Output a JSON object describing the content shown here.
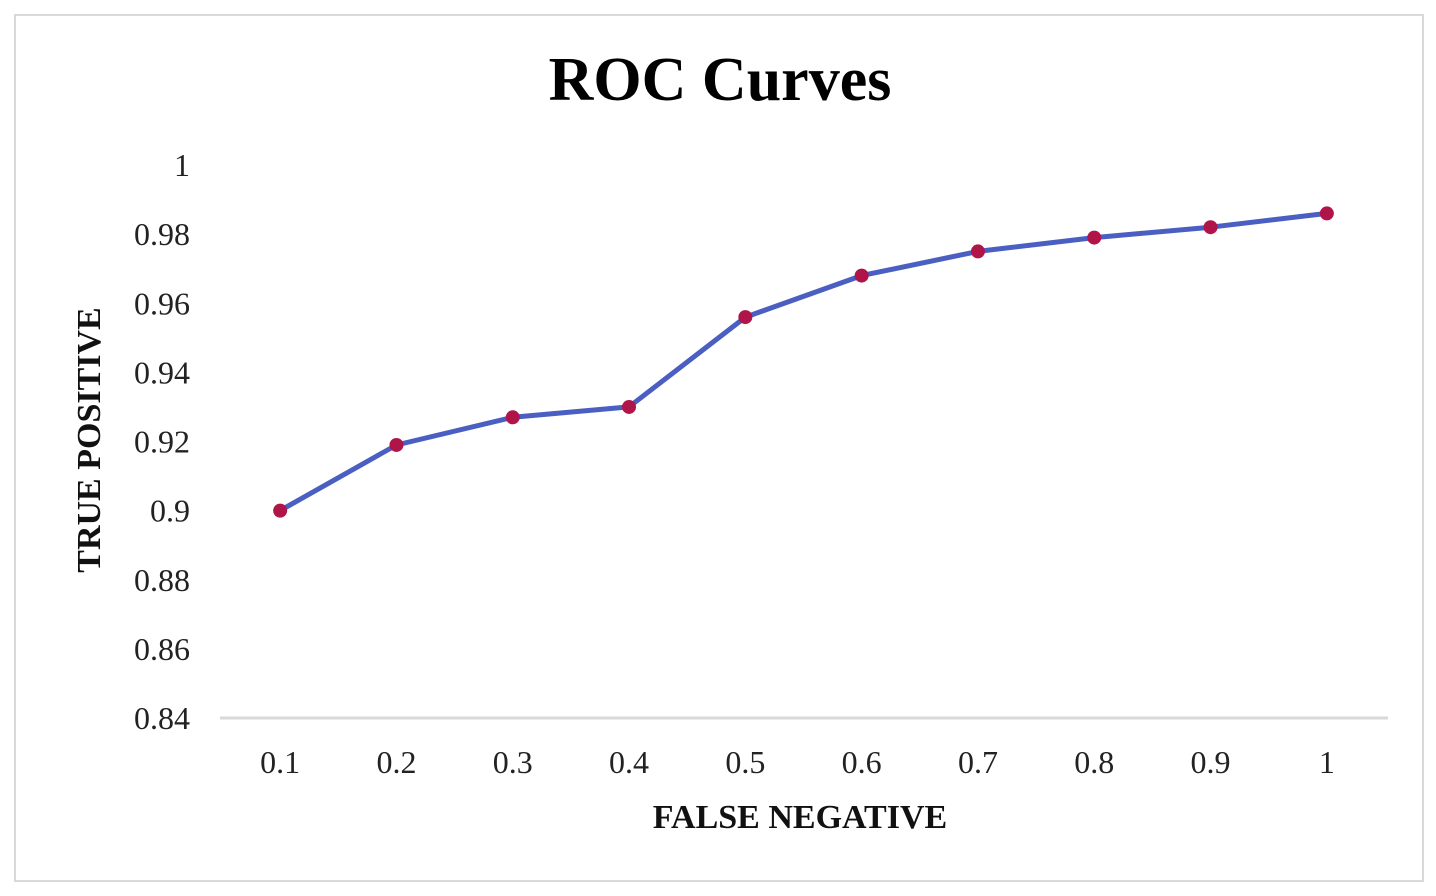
{
  "chart_data": {
    "type": "line",
    "title": "ROC Curves",
    "xlabel": "FALSE NEGATIVE",
    "ylabel": "TRUE POSITIVE",
    "categories": [
      "0.1",
      "0.2",
      "0.3",
      "0.4",
      "0.5",
      "0.6",
      "0.7",
      "0.8",
      "0.9",
      "1"
    ],
    "yticks": [
      "0.84",
      "0.86",
      "0.88",
      "0.9",
      "0.92",
      "0.94",
      "0.96",
      "0.98",
      "1"
    ],
    "ylim": [
      0.84,
      1.0
    ],
    "series": [
      {
        "values": [
          0.9,
          0.919,
          0.927,
          0.93,
          0.956,
          0.968,
          0.975,
          0.979,
          0.982,
          0.986
        ],
        "line_color": "#4a5fc1",
        "marker_color": "#b0154a"
      }
    ],
    "grid": false,
    "legend": "none"
  }
}
